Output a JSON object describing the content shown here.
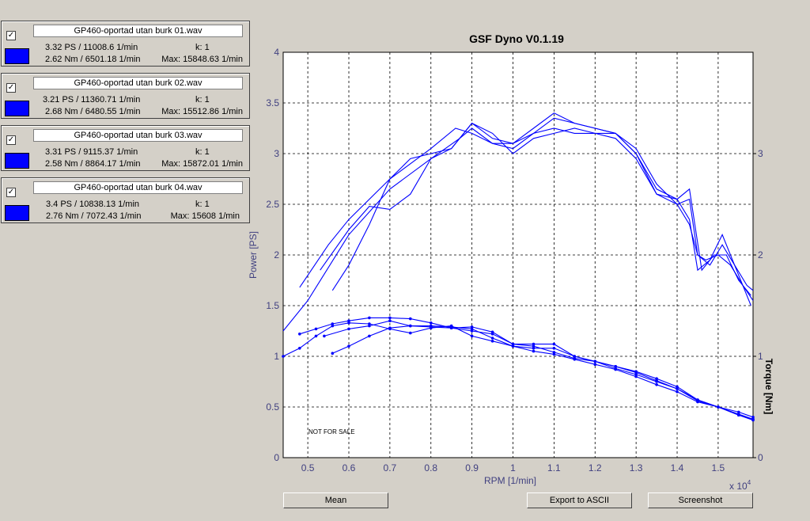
{
  "runs": [
    {
      "checked": true,
      "file": "GP460-oportad utan burk 01.wav",
      "power": "3.32 PS / 11008.6 1/min",
      "k": "k: 1",
      "torque": "2.62 Nm / 6501.18 1/min",
      "max": "Max: 15848.63 1/min",
      "color": "#0000ff"
    },
    {
      "checked": true,
      "file": "GP460-oportad utan burk 02.wav",
      "power": "3.21 PS / 11360.71 1/min",
      "k": "k: 1",
      "torque": "2.68 Nm / 6480.55 1/min",
      "max": "Max: 15512.86 1/min",
      "color": "#0000ff"
    },
    {
      "checked": true,
      "file": "GP460-oportad utan burk 03.wav",
      "power": "3.31 PS / 9115.37 1/min",
      "k": "k: 1",
      "torque": "2.58 Nm / 8864.17 1/min",
      "max": "Max: 15872.01 1/min",
      "color": "#0000ff"
    },
    {
      "checked": true,
      "file": "GP460-oportad utan burk 04.wav",
      "power": "3.4 PS / 10838.13 1/min",
      "k": "k: 1",
      "torque": "2.76 Nm / 7072.43 1/min",
      "max": "Max: 15608 1/min",
      "color": "#0000ff"
    }
  ],
  "buttons": {
    "mean": "Mean",
    "export": "Export to ASCII",
    "screenshot": "Screenshot"
  },
  "chart_data": {
    "type": "line",
    "title": "GSF Dyno V0.1.19",
    "xlabel": "RPM [1/min]",
    "ylabel": "Power [PS]",
    "y2label": "Torque [Nm]",
    "x_scale_note": "x 10",
    "x_scale_exp": "4",
    "watermark": "NOT FOR SALE",
    "xlim": [
      4400,
      15850
    ],
    "ylim": [
      0,
      4
    ],
    "y2lim": [
      0,
      4
    ],
    "xticks": [
      5000,
      6000,
      7000,
      8000,
      9000,
      10000,
      11000,
      12000,
      13000,
      14000,
      15000
    ],
    "xtick_labels": [
      "0.5",
      "0.6",
      "0.7",
      "0.8",
      "0.9",
      "1",
      "1.1",
      "1.2",
      "1.3",
      "1.4",
      "1.5"
    ],
    "yticks": [
      0,
      0.5,
      1,
      1.5,
      2,
      2.5,
      3,
      3.5,
      4
    ],
    "ytick_labels": [
      "0",
      "0.5",
      "1",
      "1.5",
      "2",
      "2.5",
      "3",
      "3.5",
      "4"
    ],
    "y2ticks": [
      0,
      1,
      2,
      3
    ],
    "y2tick_labels": [
      "0",
      "1",
      "2",
      "3"
    ],
    "grid": true,
    "color": "#0000ff",
    "power_series": [
      {
        "x": [
          4400,
          5000,
          6000,
          7000,
          8000,
          8700,
          9000,
          9500,
          10000,
          10500,
          11000,
          11500,
          12000,
          12500,
          13000,
          13500,
          14000,
          14300,
          14500,
          14700,
          15000,
          15300,
          15600,
          15850
        ],
        "y": [
          1.25,
          1.55,
          2.2,
          2.65,
          2.95,
          3.15,
          3.25,
          3.1,
          3.05,
          3.2,
          3.35,
          3.3,
          3.25,
          3.2,
          3.0,
          2.6,
          2.5,
          2.3,
          2.0,
          1.95,
          2.0,
          1.9,
          1.7,
          1.55
        ]
      },
      {
        "x": [
          4800,
          5500,
          6000,
          7000,
          8000,
          8600,
          9000,
          9500,
          10000,
          10500,
          11000,
          11500,
          12000,
          12500,
          13000,
          13500,
          14000,
          14300,
          14500,
          14800,
          15100,
          15400,
          15700,
          15850
        ],
        "y": [
          1.68,
          2.1,
          2.35,
          2.75,
          3.05,
          3.25,
          3.2,
          3.1,
          3.1,
          3.2,
          3.25,
          3.2,
          3.2,
          3.2,
          3.05,
          2.7,
          2.5,
          2.55,
          2.0,
          1.9,
          2.1,
          1.9,
          1.7,
          1.65
        ]
      },
      {
        "x": [
          5300,
          6000,
          6500,
          7000,
          7500,
          8000,
          8500,
          9000,
          9500,
          10000,
          10500,
          11000,
          11500,
          12000,
          12500,
          13000,
          13500,
          14000,
          14300,
          14500,
          14800,
          15100,
          15500,
          15800
        ],
        "y": [
          1.85,
          2.25,
          2.48,
          2.45,
          2.6,
          2.95,
          3.05,
          3.3,
          3.15,
          3.1,
          3.25,
          3.4,
          3.3,
          3.25,
          3.2,
          3.0,
          2.65,
          2.55,
          2.35,
          1.85,
          1.95,
          2.2,
          1.8,
          1.5
        ]
      },
      {
        "x": [
          5600,
          6000,
          6500,
          7000,
          7500,
          8000,
          8500,
          9000,
          9500,
          10000,
          10500,
          11000,
          11500,
          12000,
          12500,
          13000,
          13500,
          14000,
          14300,
          14600,
          14900,
          15200,
          15500,
          15800
        ],
        "y": [
          1.65,
          1.9,
          2.3,
          2.75,
          2.95,
          3.0,
          3.05,
          3.3,
          3.2,
          3.0,
          3.15,
          3.2,
          3.25,
          3.2,
          3.15,
          2.95,
          2.6,
          2.55,
          2.65,
          1.85,
          2.0,
          2.0,
          1.75,
          1.6
        ]
      }
    ],
    "torque_series": [
      {
        "x": [
          4400,
          4800,
          5200,
          5600,
          6000,
          6500,
          7000,
          7500,
          8000,
          8500,
          9000,
          9500,
          10000,
          10500,
          11000,
          11500,
          12000,
          12500,
          13000,
          13500,
          14000,
          14500,
          15000,
          15500,
          15850
        ],
        "y": [
          1.0,
          1.08,
          1.2,
          1.3,
          1.33,
          1.32,
          1.27,
          1.23,
          1.28,
          1.3,
          1.2,
          1.15,
          1.1,
          1.05,
          1.02,
          0.97,
          0.92,
          0.87,
          0.8,
          0.72,
          0.65,
          0.55,
          0.5,
          0.42,
          0.38
        ]
      },
      {
        "x": [
          4800,
          5200,
          5600,
          6000,
          6500,
          7000,
          7500,
          8000,
          8500,
          9000,
          9500,
          10000,
          10500,
          11000,
          11500,
          12000,
          12500,
          13000,
          13500,
          14000,
          14500,
          15000,
          15500,
          15850
        ],
        "y": [
          1.22,
          1.27,
          1.32,
          1.35,
          1.38,
          1.38,
          1.37,
          1.33,
          1.28,
          1.25,
          1.22,
          1.12,
          1.1,
          1.04,
          0.98,
          0.95,
          0.9,
          0.84,
          0.76,
          0.68,
          0.57,
          0.5,
          0.43,
          0.38
        ]
      },
      {
        "x": [
          5600,
          6000,
          6500,
          7000,
          7500,
          8000,
          8500,
          9000,
          9500,
          10000,
          10500,
          11000,
          11500,
          12000,
          12500,
          13000,
          13500,
          14000,
          14500,
          15000,
          15500,
          15850
        ],
        "y": [
          1.03,
          1.1,
          1.2,
          1.28,
          1.3,
          1.29,
          1.28,
          1.29,
          1.24,
          1.12,
          1.12,
          1.12,
          1.0,
          0.95,
          0.9,
          0.85,
          0.78,
          0.7,
          0.57,
          0.5,
          0.45,
          0.4
        ]
      },
      {
        "x": [
          5400,
          6000,
          6500,
          7000,
          7500,
          8000,
          8500,
          9000,
          9500,
          10000,
          10500,
          11000,
          11500,
          12000,
          12500,
          13000,
          13500,
          14000,
          14500,
          15000,
          15500,
          15850
        ],
        "y": [
          1.2,
          1.27,
          1.3,
          1.35,
          1.3,
          1.3,
          1.29,
          1.27,
          1.18,
          1.1,
          1.08,
          1.08,
          1.0,
          0.95,
          0.88,
          0.82,
          0.75,
          0.68,
          0.56,
          0.5,
          0.42,
          0.37
        ]
      }
    ]
  }
}
